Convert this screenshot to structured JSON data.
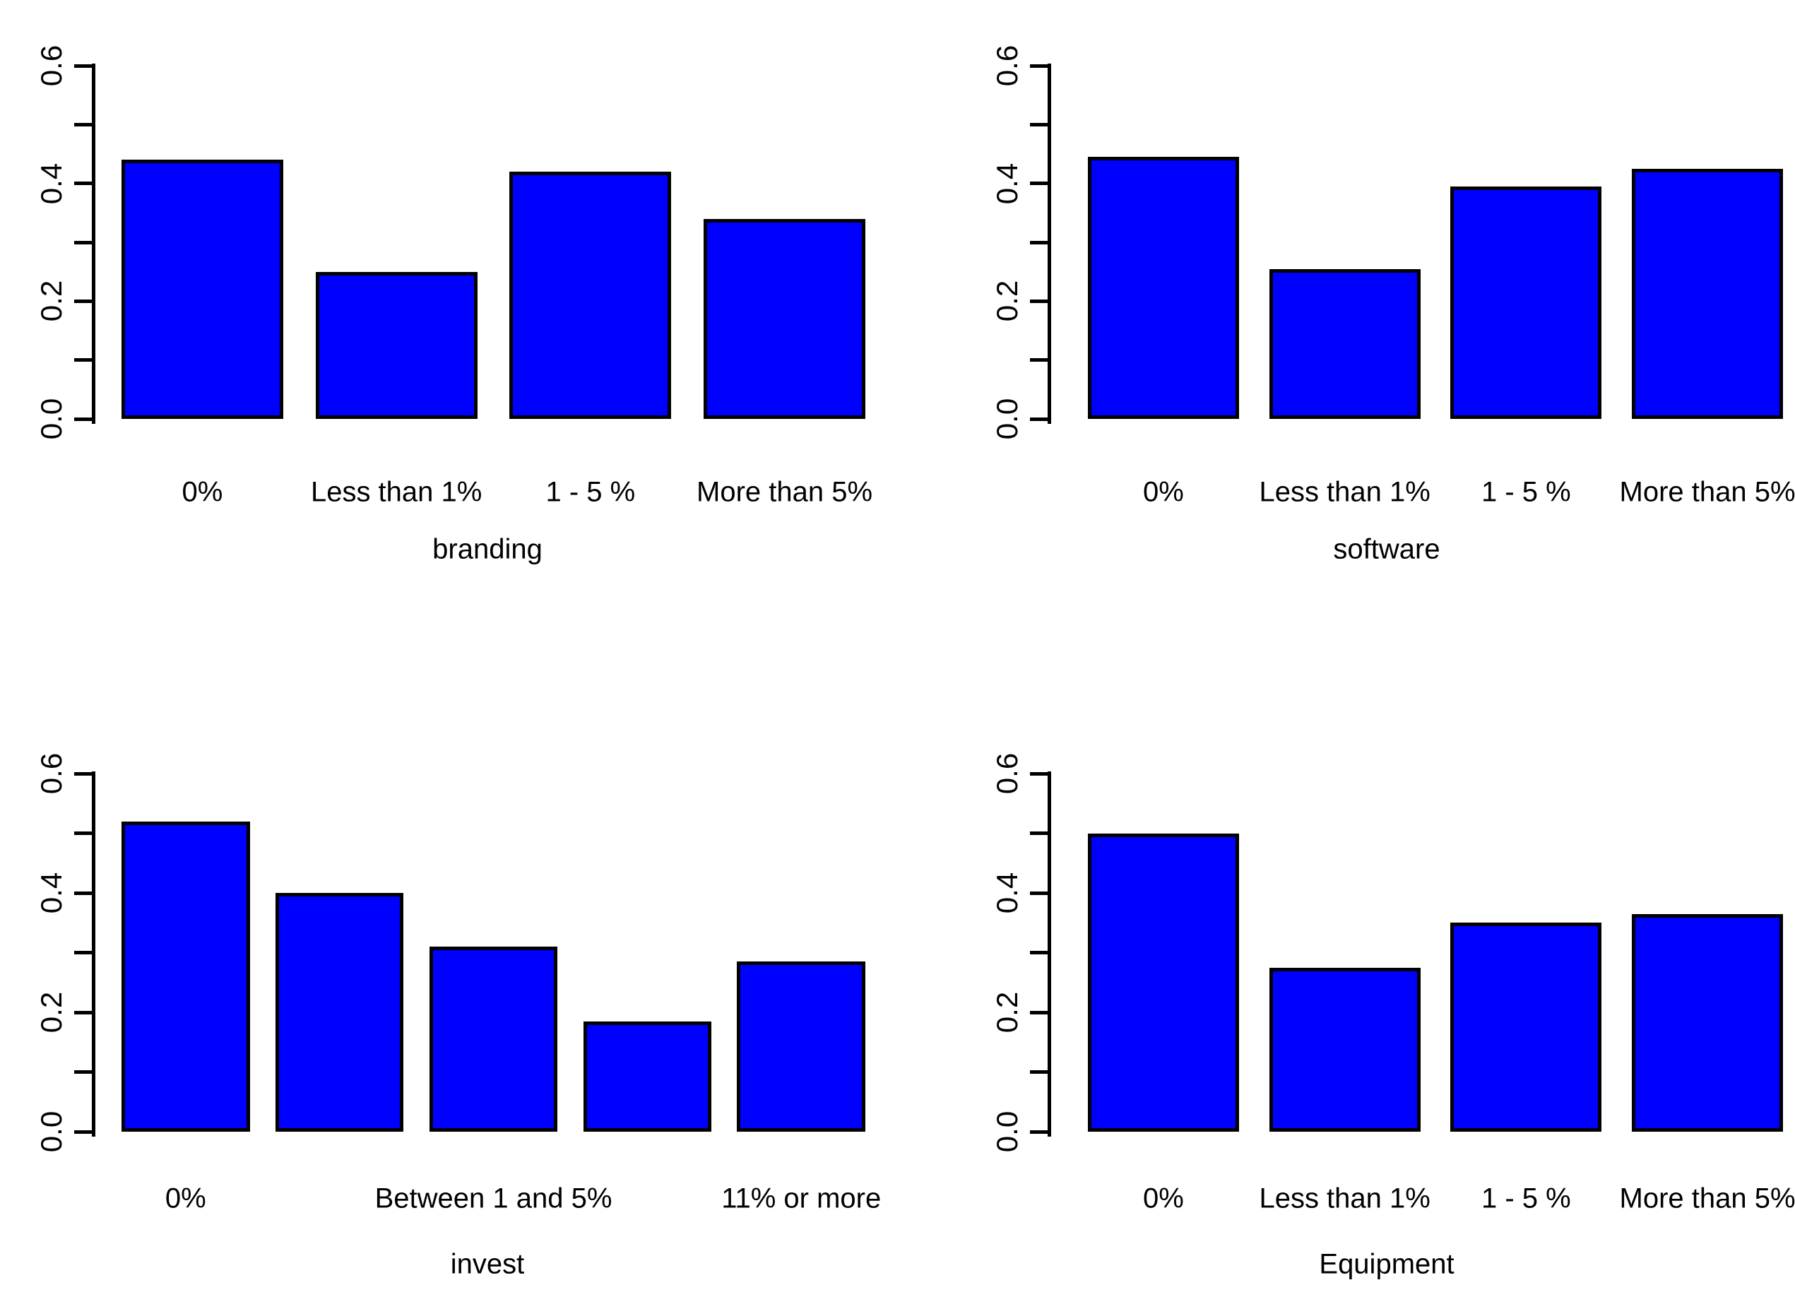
{
  "figure": {
    "background": "#ffffff",
    "bar_color": "#0000ff",
    "bar_border_color": "#000000",
    "text_color": "#000000"
  },
  "chart_data": [
    {
      "type": "bar",
      "title": "branding",
      "categories": [
        "0%",
        "Less than 1%",
        "1 - 5 %",
        "More than 5%"
      ],
      "label_positions": [
        0,
        1,
        2,
        3
      ],
      "values": [
        0.44,
        0.25,
        0.42,
        0.34
      ],
      "ylim": [
        0,
        0.6
      ],
      "yticks": [
        0,
        0.1,
        0.2,
        0.3,
        0.4,
        0.5,
        0.6
      ],
      "ytick_labels": [
        "0.0",
        "0.2",
        "0.4",
        "0.6"
      ],
      "grid": "off",
      "legend": "none"
    },
    {
      "type": "bar",
      "title": "software",
      "categories": [
        "0%",
        "Less than 1%",
        "1 - 5 %",
        "More than 5%"
      ],
      "label_positions": [
        0,
        1,
        2,
        3
      ],
      "values": [
        0.445,
        0.255,
        0.395,
        0.425
      ],
      "ylim": [
        0,
        0.6
      ],
      "yticks": [
        0,
        0.1,
        0.2,
        0.3,
        0.4,
        0.5,
        0.6
      ],
      "ytick_labels": [
        "0.0",
        "0.2",
        "0.4",
        "0.6"
      ],
      "grid": "off",
      "legend": "none"
    },
    {
      "type": "bar",
      "title": "invest",
      "categories": [
        "0%",
        "Between 1 and 5%",
        "11% or more"
      ],
      "label_positions": [
        0,
        2,
        4
      ],
      "values": [
        0.52,
        0.4,
        0.31,
        0.185,
        0.285
      ],
      "ylim": [
        0,
        0.6
      ],
      "yticks": [
        0,
        0.1,
        0.2,
        0.3,
        0.4,
        0.5,
        0.6
      ],
      "ytick_labels": [
        "0.0",
        "0.2",
        "0.4",
        "0.6"
      ],
      "grid": "off",
      "legend": "none"
    },
    {
      "type": "bar",
      "title": "Equipment",
      "categories": [
        "0%",
        "Less than 1%",
        "1 - 5 %",
        "More than 5%"
      ],
      "label_positions": [
        0,
        1,
        2,
        3
      ],
      "values": [
        0.5,
        0.275,
        0.35,
        0.365
      ],
      "ylim": [
        0,
        0.6
      ],
      "yticks": [
        0,
        0.1,
        0.2,
        0.3,
        0.4,
        0.5,
        0.6
      ],
      "ytick_labels": [
        "0.0",
        "0.2",
        "0.4",
        "0.6"
      ],
      "grid": "off",
      "legend": "none"
    }
  ]
}
